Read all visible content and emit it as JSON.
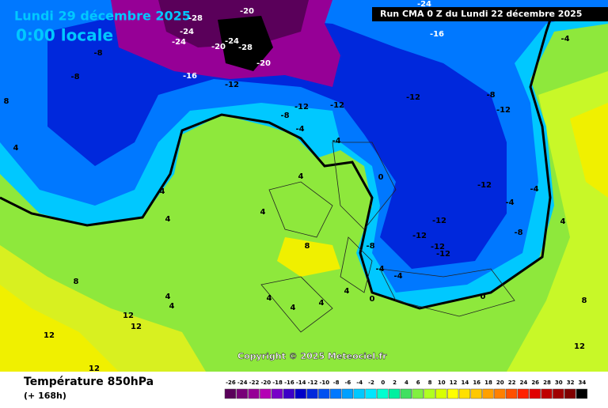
{
  "header": {
    "date": "Lundi 29 décembre 2025",
    "time": "0:00 locale",
    "run": "Run CMA 0 Z du Lundi 22 décembre 2025"
  },
  "copyright": "Copyright © 2025 Meteociel.fr",
  "footer": {
    "title": "Température 850hPa",
    "lead": "(+ 168h)"
  },
  "map": {
    "labels": [
      -28,
      -24,
      -24,
      -20,
      -24,
      -20,
      -28,
      -20,
      -16,
      -12,
      -24,
      -16,
      -4,
      -8,
      -8,
      -12,
      -12,
      -12,
      -8,
      -12,
      -8,
      -4,
      -4,
      4,
      0,
      4,
      4,
      4,
      -12,
      -4,
      -12,
      -12,
      -8,
      -12,
      -12,
      8,
      -4,
      -4,
      4,
      0,
      4,
      12,
      12,
      12,
      12,
      4,
      4,
      4,
      8,
      4,
      8,
      0,
      -4,
      -8,
      4,
      8,
      12,
      4
    ]
  },
  "legend": {
    "ticks": [
      -26,
      -24,
      -22,
      -20,
      -18,
      -16,
      -14,
      -12,
      -10,
      -8,
      -6,
      -4,
      -2,
      0,
      2,
      4,
      6,
      8,
      10,
      12,
      14,
      16,
      18,
      20,
      22,
      24,
      26,
      28,
      30,
      32,
      34
    ],
    "colors": [
      "#5a005a",
      "#780078",
      "#960096",
      "#b400b4",
      "#7800c8",
      "#3c00c8",
      "#0000c8",
      "#0028dc",
      "#0050f0",
      "#0078ff",
      "#00a0ff",
      "#00c8ff",
      "#00e6ff",
      "#00ffd0",
      "#00f0a0",
      "#40e060",
      "#80f040",
      "#b0ff20",
      "#d8ff00",
      "#ffff00",
      "#ffe000",
      "#ffc800",
      "#ffa000",
      "#ff8000",
      "#ff5000",
      "#ff2000",
      "#e00000",
      "#c00000",
      "#a00000",
      "#800000",
      "#000000"
    ]
  }
}
